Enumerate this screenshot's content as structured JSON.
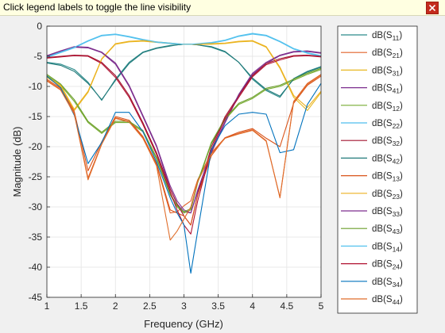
{
  "banner": {
    "text": "Click legend labels to toggle the line visibility"
  },
  "icons": {
    "close": "close-icon"
  },
  "chart_data": {
    "type": "line",
    "xlabel": "Frequency (GHz)",
    "ylabel": "Magnitude (dB)",
    "xlim": [
      1,
      5
    ],
    "ylim": [
      -45,
      0
    ],
    "xticks": [
      "1",
      "1.5",
      "2",
      "2.5",
      "3",
      "3.5",
      "4",
      "4.5",
      "5"
    ],
    "yticks": [
      "0",
      "-5",
      "-10",
      "-15",
      "-20",
      "-25",
      "-30",
      "-35",
      "-40",
      "-45"
    ],
    "grid": true,
    "legend_position": "right, outside plot",
    "x": [
      1,
      1.2,
      1.4,
      1.6,
      1.8,
      2,
      2.2,
      2.4,
      2.6,
      2.8,
      2.9,
      3,
      3.1,
      3.2,
      3.4,
      3.6,
      3.8,
      4,
      4.2,
      4.4,
      4.6,
      4.8,
      5
    ],
    "series": [
      {
        "name": "S11",
        "label_base": "dB(S",
        "label_sub": "11",
        "label_end": ")",
        "color": "#2a8a8a",
        "values": [
          -6,
          -6.3,
          -7.2,
          -9.3,
          -12.3,
          -8.8,
          -6,
          -4.3,
          -3.6,
          -3.2,
          -3.1,
          -3,
          -3,
          -3.1,
          -3.5,
          -4.3,
          -6,
          -8.8,
          -10.7,
          -11.8,
          -8.7,
          -7.5,
          -6.7
        ]
      },
      {
        "name": "S21",
        "label_base": "dB(S",
        "label_sub": "21",
        "label_end": ")",
        "color": "#e0622a",
        "values": [
          -9,
          -10.5,
          -14.5,
          -25.2,
          -19.5,
          -15.2,
          -15.8,
          -18.5,
          -23,
          -31,
          -30.8,
          -29.8,
          -29,
          -25.5,
          -21,
          -18.5,
          -17.8,
          -17.2,
          -19,
          -28.5,
          -12.5,
          -9.5,
          -8
        ]
      },
      {
        "name": "S31",
        "label_base": "dB(S",
        "label_sub": "31",
        "label_end": ")",
        "color": "#e8b820",
        "values": [
          -8.5,
          -10,
          -14,
          -11,
          -5.5,
          -3,
          -2.6,
          -2.5,
          -2.7,
          -2.9,
          -3,
          -3,
          -3,
          -3,
          -3,
          -2.9,
          -2.6,
          -2.5,
          -3.5,
          -7,
          -11.8,
          -14,
          -11
        ]
      },
      {
        "name": "S41",
        "label_base": "dB(S",
        "label_sub": "41",
        "label_end": ")",
        "color": "#7b2d8e",
        "values": [
          -5,
          -4.2,
          -3.5,
          -3.6,
          -4.4,
          -6.3,
          -10,
          -15,
          -20,
          -27,
          -29.5,
          -30.8,
          -31,
          -27.5,
          -21,
          -16,
          -11.5,
          -8,
          -6.2,
          -4.9,
          -4.3,
          -4.2,
          -4.5
        ]
      },
      {
        "name": "S12",
        "label_base": "dB(S",
        "label_sub": "12",
        "label_end": ")",
        "color": "#77ac30",
        "values": [
          -8.2,
          -9.8,
          -12.5,
          -16,
          -17.8,
          -16,
          -16,
          -17.5,
          -22,
          -28,
          -30,
          -31,
          -30.5,
          -26,
          -19.5,
          -15.5,
          -13,
          -12,
          -10.5,
          -10,
          -9,
          -8,
          -7.2
        ]
      },
      {
        "name": "S22",
        "label_base": "dB(S",
        "label_sub": "22",
        "label_end": ")",
        "color": "#4dbeee",
        "values": [
          -5.2,
          -4.4,
          -3.6,
          -2.5,
          -1.6,
          -1.4,
          -1.8,
          -2.3,
          -2.7,
          -2.9,
          -3,
          -3,
          -3,
          -3,
          -2.8,
          -2.4,
          -1.7,
          -1.3,
          -1.6,
          -2.6,
          -3.8,
          -4.5,
          -5
        ]
      },
      {
        "name": "S32",
        "label_base": "dB(S",
        "label_sub": "32",
        "label_end": ")",
        "color": "#a2142f",
        "values": [
          -5.2,
          -5,
          -4.8,
          -4.9,
          -6,
          -8.2,
          -11.5,
          -16,
          -21,
          -27,
          -29.5,
          -31.5,
          -33,
          -28,
          -20,
          -15,
          -11.5,
          -8.2,
          -6.2,
          -5.4,
          -4.9,
          -4.8,
          -5
        ]
      },
      {
        "name": "S42",
        "label_base": "dB(S",
        "label_sub": "42",
        "label_end": ")",
        "color": "#217a7a",
        "values": [
          -6.1,
          -6.5,
          -7.5,
          -9.5,
          -12.2,
          -9,
          -6.2,
          -4.4,
          -3.7,
          -3.3,
          -3.1,
          -3,
          -3,
          -3.1,
          -3.4,
          -4.2,
          -6,
          -8.6,
          -10.5,
          -11.6,
          -8.8,
          -7.6,
          -6.8
        ]
      },
      {
        "name": "S13",
        "label_base": "dB(S",
        "label_sub": "13",
        "label_end": ")",
        "color": "#d95319",
        "values": [
          -8.8,
          -10.3,
          -14.2,
          -24,
          -19.2,
          -15,
          -15.6,
          -18.3,
          -22.8,
          -30.5,
          -31,
          -31.5,
          -33,
          -28,
          -21.5,
          -18.5,
          -17.6,
          -17,
          -18.6,
          -20,
          -12.8,
          -9.8,
          -8.3
        ]
      },
      {
        "name": "S23",
        "label_base": "dB(S",
        "label_sub": "23",
        "label_end": ")",
        "color": "#edb120",
        "values": [
          -8.4,
          -9.8,
          -13.8,
          -10.8,
          -5.4,
          -2.9,
          -2.5,
          -2.4,
          -2.6,
          -2.8,
          -2.9,
          -3,
          -3,
          -3,
          -2.9,
          -2.8,
          -2.5,
          -2.4,
          -3.4,
          -6.8,
          -11.5,
          -13.5,
          -10.8
        ]
      },
      {
        "name": "S33",
        "label_base": "dB(S",
        "label_sub": "33",
        "label_end": ")",
        "color": "#7e2f8e",
        "values": [
          -4.9,
          -4.1,
          -3.4,
          -3.5,
          -4.3,
          -6.1,
          -9.8,
          -14.8,
          -19.8,
          -26.5,
          -29,
          -30.5,
          -31,
          -27.2,
          -20.8,
          -15.8,
          -11.3,
          -7.8,
          -6,
          -4.8,
          -4.2,
          -4.1,
          -4.4
        ]
      },
      {
        "name": "S43",
        "label_base": "dB(S",
        "label_sub": "43",
        "label_end": ")",
        "color": "#6a9e2a",
        "values": [
          -8,
          -9.6,
          -12.2,
          -15.8,
          -17.6,
          -15.8,
          -15.8,
          -17.3,
          -21.8,
          -27.8,
          -29.8,
          -30.8,
          -30.3,
          -25.8,
          -19.3,
          -15.3,
          -12.8,
          -11.8,
          -10.3,
          -9.8,
          -8.8,
          -7.8,
          -7
        ]
      },
      {
        "name": "S14",
        "label_base": "dB(S",
        "label_sub": "14",
        "label_end": ")",
        "color": "#56c3ee",
        "values": [
          -5.1,
          -4.3,
          -3.5,
          -2.4,
          -1.5,
          -1.3,
          -1.7,
          -2.2,
          -2.6,
          -2.8,
          -2.9,
          -3,
          -3,
          -2.9,
          -2.7,
          -2.3,
          -1.6,
          -1.2,
          -1.5,
          -2.5,
          -3.7,
          -4.4,
          -4.9
        ]
      },
      {
        "name": "S24",
        "label_base": "dB(S",
        "label_sub": "24",
        "label_end": ")",
        "color": "#b01030",
        "values": [
          -5.3,
          -5.1,
          -4.9,
          -5,
          -6.2,
          -8.5,
          -11.8,
          -16.3,
          -21.3,
          -27.5,
          -30.5,
          -33,
          -34.5,
          -29,
          -20.5,
          -15.3,
          -11.8,
          -8.4,
          -6.4,
          -5.6,
          -5,
          -4.9,
          -5.1
        ]
      },
      {
        "name": "S34",
        "label_base": "dB(S",
        "label_sub": "34",
        "label_end": ")",
        "color": "#0072bd",
        "values": [
          -8.3,
          -10.2,
          -14.8,
          -22.8,
          -19.3,
          -14.3,
          -14.3,
          -17.5,
          -22.5,
          -28.5,
          -31,
          -33,
          -41,
          -34,
          -20.5,
          -16.5,
          -14.6,
          -14.3,
          -14.6,
          -21,
          -20.5,
          -13,
          -9.5
        ]
      },
      {
        "name": "S44",
        "label_base": "dB(S",
        "label_sub": "44",
        "label_end": ")",
        "color": "#e06d2a",
        "values": [
          -9.1,
          -10.6,
          -14.6,
          -25.5,
          -19.6,
          -15.3,
          -15.9,
          -18.6,
          -23.2,
          -35.5,
          -34,
          -32,
          -30,
          -25.8,
          -21.2,
          -18.6,
          -17.9,
          -17.3,
          -19.1,
          -28.4,
          -12.6,
          -9.6,
          -8.1
        ]
      }
    ]
  }
}
